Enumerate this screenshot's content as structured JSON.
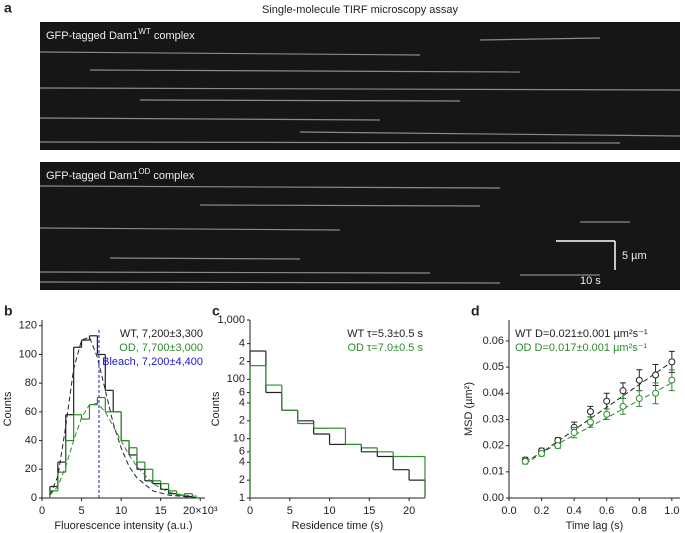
{
  "panel_a": {
    "label": "a",
    "title": "Single-molecule TIRF microscopy assay",
    "kymographs": [
      {
        "prefix": "GFP-tagged Dam1",
        "sup": "WT",
        "suffix": " complex"
      },
      {
        "prefix": "GFP-tagged Dam1",
        "sup": "OD",
        "suffix": " complex"
      }
    ],
    "scale_bar": {
      "y": "5 µm",
      "x": "10 s"
    }
  },
  "chart_data": [
    {
      "type": "histogram",
      "label": "b",
      "xlabel": "Fluorescence intensity (a.u.)",
      "ylabel": "Counts",
      "bins": [
        1,
        2,
        3,
        4,
        5,
        6,
        7,
        8,
        9,
        10,
        11,
        12,
        13,
        14,
        15,
        16,
        17,
        18,
        19
      ],
      "series": [
        {
          "name": "WT, 7,200±3,300",
          "color": "#222222",
          "values": [
            8,
            25,
            58,
            105,
            110,
            113,
            100,
            75,
            60,
            40,
            30,
            20,
            12,
            10,
            6,
            3,
            2,
            1
          ]
        },
        {
          "name": "OD, 7,700±3,000",
          "color": "#2e8b2e",
          "values": [
            5,
            18,
            40,
            58,
            55,
            65,
            70,
            60,
            60,
            40,
            35,
            25,
            20,
            12,
            10,
            5,
            2,
            3
          ]
        }
      ],
      "fits": [
        {
          "color": "#222222",
          "x": [
            1,
            2,
            3,
            4,
            5,
            6,
            7,
            8,
            9,
            10,
            11,
            12,
            14,
            16,
            18,
            20
          ],
          "values": [
            2,
            15,
            50,
            90,
            110,
            112,
            98,
            75,
            52,
            35,
            22,
            14,
            5,
            2,
            1,
            0
          ]
        },
        {
          "color": "#2e8b2e",
          "x": [
            1,
            2,
            3,
            4,
            5,
            6,
            7,
            8,
            9,
            10,
            11,
            12,
            14,
            16,
            18,
            20
          ],
          "values": [
            2,
            8,
            22,
            40,
            56,
            65,
            66,
            60,
            50,
            40,
            30,
            22,
            10,
            4,
            2,
            1
          ]
        }
      ],
      "markers": [
        {
          "name": "Bleach, 7,200±4,400",
          "color": "#1a1acc",
          "x": 7.2
        }
      ],
      "xlim": [
        0,
        20.6
      ],
      "ylim": [
        0,
        124
      ],
      "xticks": [
        0,
        5,
        10,
        15,
        {
          "value": 20,
          "label": "20×10³"
        }
      ],
      "yticks": [
        0,
        20,
        40,
        60,
        80,
        100,
        120
      ],
      "legend": "upper right"
    },
    {
      "type": "histogram",
      "label": "c",
      "xlabel": "Residence time (s)",
      "ylabel": "Counts",
      "log_y": true,
      "bins": [
        0,
        2,
        4,
        6,
        8,
        10,
        12,
        14,
        16,
        18,
        20,
        22
      ],
      "series": [
        {
          "name": "WT τ=5.3±0.5 s",
          "color": "#222222",
          "values": [
            300,
            60,
            30,
            20,
            12,
            8,
            8,
            6,
            5,
            3,
            2
          ]
        },
        {
          "name": "OD τ=7.0±0.5 s",
          "color": "#2e8b2e",
          "values": [
            170,
            80,
            30,
            18,
            15,
            15,
            8,
            7,
            6,
            5,
            5
          ]
        }
      ],
      "xlim": [
        0,
        22
      ],
      "ylim": [
        1,
        1000
      ],
      "xticks": [
        0,
        5,
        10,
        15,
        20
      ],
      "yticks": [
        1,
        2,
        4,
        6,
        10,
        {
          "value": 20,
          "label": "2"
        },
        {
          "value": 40,
          "label": "4"
        },
        {
          "value": 60,
          "label": "6"
        },
        100,
        {
          "value": 200,
          "label": "2"
        },
        {
          "value": 400,
          "label": "4"
        },
        {
          "value": 1000,
          "label": "1,000"
        }
      ],
      "legend": "upper right"
    },
    {
      "type": "scatter",
      "label": "d",
      "xlabel": "Time lag (s)",
      "ylabel": "MSD (µm²)",
      "series": [
        {
          "name": "WT D=0.021±0.001 µm²s⁻¹",
          "color": "#222222",
          "x": [
            0.1,
            0.2,
            0.3,
            0.4,
            0.5,
            0.6,
            0.7,
            0.8,
            0.9,
            1.0
          ],
          "values": [
            0.0145,
            0.018,
            0.022,
            0.027,
            0.033,
            0.037,
            0.041,
            0.045,
            0.047,
            0.052
          ],
          "errors": [
            0.001,
            0.001,
            0.001,
            0.002,
            0.002,
            0.003,
            0.003,
            0.004,
            0.004,
            0.004
          ],
          "fit_x": [
            0.1,
            1.0
          ],
          "fit_values": [
            0.013,
            0.052
          ]
        },
        {
          "name": "OD D=0.017±0.001 µm²s⁻¹",
          "color": "#2e8b2e",
          "x": [
            0.1,
            0.2,
            0.3,
            0.4,
            0.5,
            0.6,
            0.7,
            0.8,
            0.9,
            1.0
          ],
          "values": [
            0.014,
            0.017,
            0.02,
            0.025,
            0.029,
            0.032,
            0.035,
            0.038,
            0.04,
            0.045
          ],
          "errors": [
            0.001,
            0.001,
            0.001,
            0.002,
            0.002,
            0.002,
            0.003,
            0.003,
            0.004,
            0.004
          ],
          "fit_x": [
            0.1,
            1.0
          ],
          "fit_values": [
            0.014,
            0.044
          ]
        }
      ],
      "xlim": [
        0,
        1.05
      ],
      "ylim": [
        0,
        0.068
      ],
      "xticks": [
        {
          "value": 0,
          "label": "0.0"
        },
        0.2,
        0.4,
        0.6,
        0.8,
        {
          "value": 1,
          "label": "1.0"
        }
      ],
      "yticks": [
        {
          "value": 0,
          "label": "0.00"
        },
        0.01,
        0.02,
        0.03,
        0.04,
        0.05,
        0.06
      ],
      "legend": "upper left"
    }
  ]
}
